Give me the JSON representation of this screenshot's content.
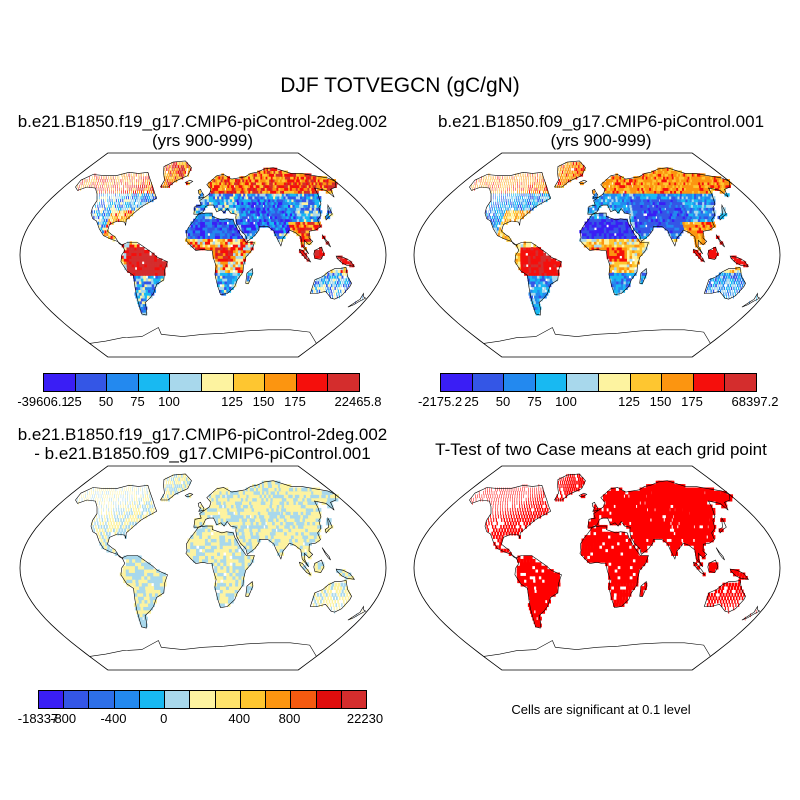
{
  "title": "DJF TOTVEGCN (gC/gN)",
  "panels": [
    {
      "title_line1": "b.e21.B1850.f19_g17.CMIP6-piControl-2deg.002",
      "title_line2": "(yrs 900-999)",
      "scheme": "main",
      "colorbar": {
        "colors": [
          "#3a1ef5",
          "#3456e6",
          "#2389ef",
          "#18b9f2",
          "#a8d8ec",
          "#fdf3a0",
          "#fec630",
          "#fc9510",
          "#f50f0c",
          "#d42d2d"
        ],
        "labels": [
          "-39606.1",
          "25",
          "50",
          "75",
          "100",
          "125",
          "150",
          "175",
          "22465.8"
        ]
      }
    },
    {
      "title_line1": "b.e21.B1850.f09_g17.CMIP6-piControl.001",
      "title_line2": "(yrs 900-999)",
      "scheme": "main",
      "colorbar": {
        "colors": [
          "#3a1ef5",
          "#3456e6",
          "#2389ef",
          "#18b9f2",
          "#a8d8ec",
          "#fdf3a0",
          "#fec630",
          "#fc9510",
          "#f50f0c",
          "#d42d2d"
        ],
        "labels": [
          "-2175.2",
          "25",
          "50",
          "75",
          "100",
          "125",
          "150",
          "175",
          "68397.2"
        ]
      }
    },
    {
      "title_line1": "b.e21.B1850.f19_g17.CMIP6-piControl-2deg.002",
      "title_line2": "- b.e21.B1850.f09_g17.CMIP6-piControl.001",
      "scheme": "diff",
      "colorbar": {
        "colors": [
          "#3a1ef5",
          "#3456e6",
          "#2d6fe8",
          "#2389ef",
          "#18b9f2",
          "#a8d8ec",
          "#fdf3a0",
          "#fee36b",
          "#fec630",
          "#fc9510",
          "#f55a10",
          "#e00d0d",
          "#d42d2d"
        ],
        "labels": [
          "-18337",
          "-800",
          "-400",
          "0",
          "400",
          "800",
          "22230"
        ]
      }
    },
    {
      "title_line1": "T-Test of two Case means at each grid point",
      "title_line2": "",
      "scheme": "ttest",
      "note": "Cells are significant at 0.1 level"
    }
  ]
}
